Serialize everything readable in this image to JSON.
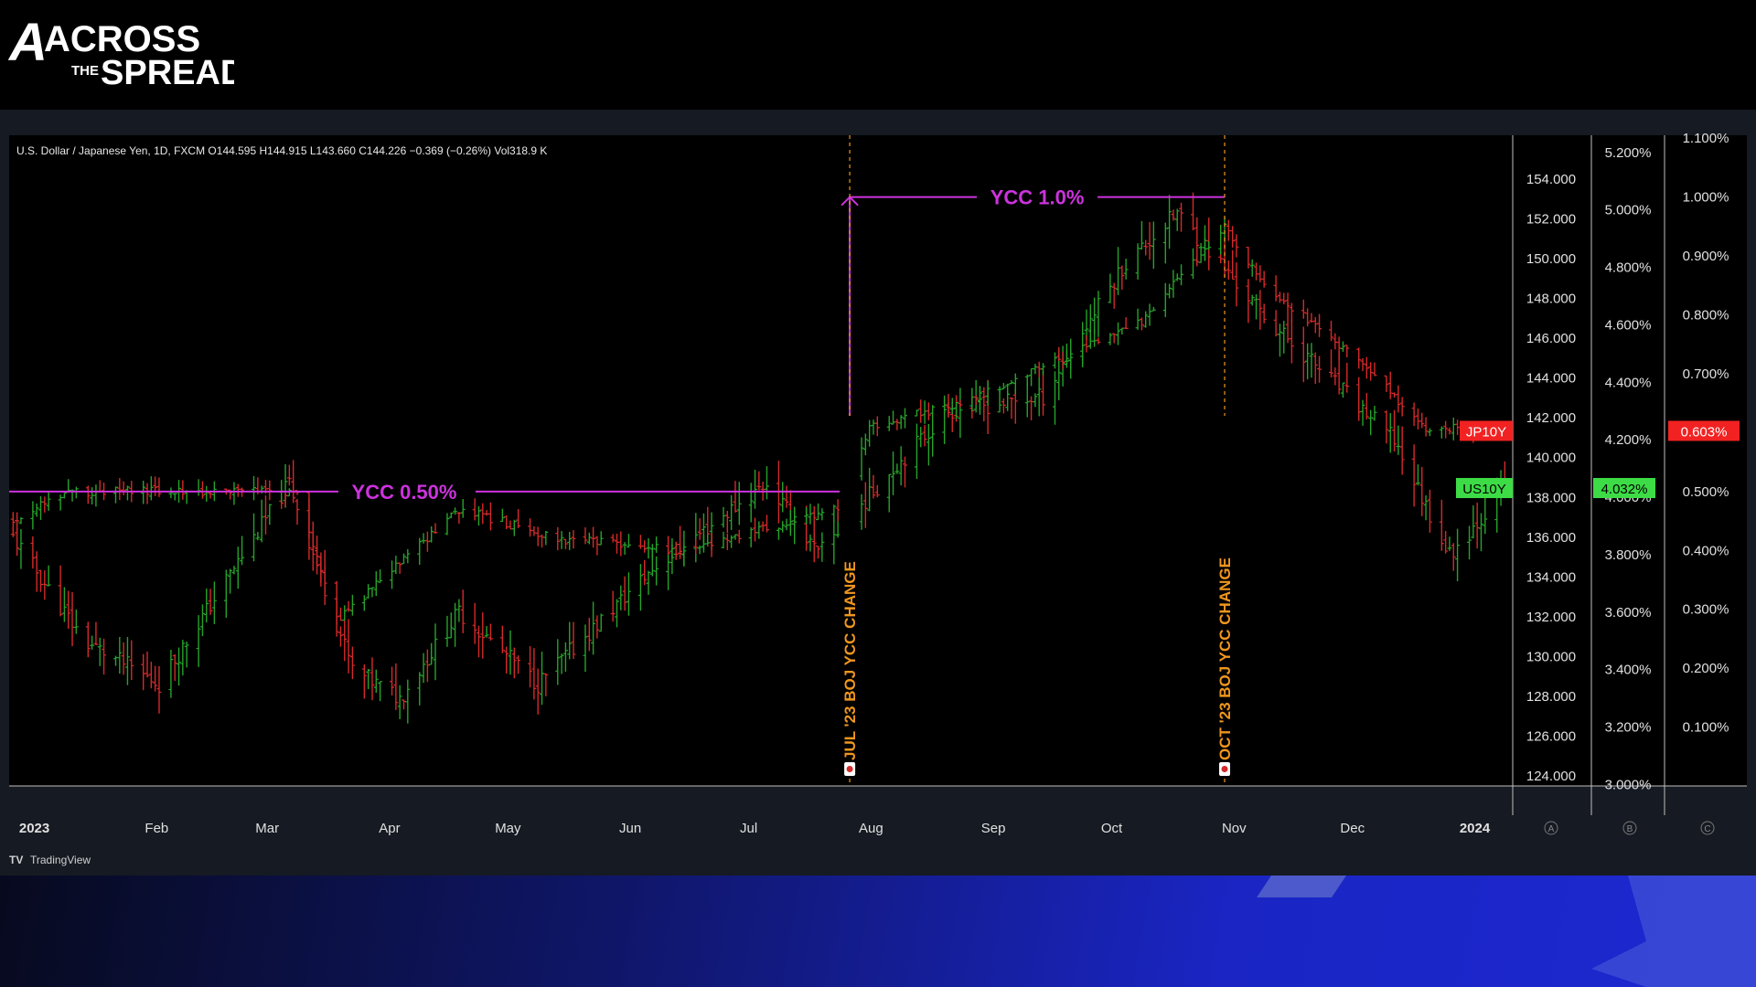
{
  "brand": {
    "logo_line1": "ACROSS",
    "logo_the": "THE",
    "logo_line2": "SPREAD"
  },
  "legend_text": "U.S. Dollar / Japanese Yen, 1D, FXCM  O144.595  H144.915  L143.660  C144.226  −0.369 (−0.26%)  Vol318.9 K",
  "footer": {
    "tradingview_label": "TradingView"
  },
  "pane_letters": [
    "A",
    "B",
    "C"
  ],
  "colors": {
    "up": "#26a32a",
    "down": "#d42a2a",
    "annotation": "#cc33dd",
    "event": "#f0961e",
    "jp_label": "#f22222",
    "us_label": "#3ddc46"
  },
  "chart_data": {
    "type": "bar",
    "symbol": "U.S. Dollar / Japanese Yen",
    "interval": "1D",
    "x_range": [
      "2022-12-27",
      "2024-01-12"
    ],
    "x_ticks": [
      "2023",
      "Feb",
      "Mar",
      "Apr",
      "May",
      "Jun",
      "Jul",
      "Aug",
      "Sep",
      "Oct",
      "Nov",
      "Dec",
      "2024"
    ],
    "y_axes": [
      {
        "name": "USDJPY",
        "range": [
          123.5,
          156.2
        ],
        "ticks": [
          "124.000",
          "126.000",
          "128.000",
          "130.000",
          "132.000",
          "134.000",
          "136.000",
          "138.000",
          "140.000",
          "142.000",
          "144.000",
          "146.000",
          "148.000",
          "150.000",
          "152.000",
          "154.000"
        ]
      },
      {
        "name": "US10Y",
        "range": [
          2.995,
          5.26
        ],
        "ticks": [
          "3.000%",
          "3.200%",
          "3.400%",
          "3.600%",
          "3.800%",
          "4.000%",
          "4.200%",
          "4.400%",
          "4.600%",
          "4.800%",
          "5.000%",
          "5.200%"
        ],
        "last_value": "4.032%",
        "label": "US10Y"
      },
      {
        "name": "JP10Y",
        "range": [
          0.0,
          1.105
        ],
        "ticks": [
          "0.100%",
          "0.200%",
          "0.300%",
          "0.400%",
          "0.500%",
          "0.600%",
          "0.700%",
          "0.800%",
          "0.900%",
          "1.000%",
          "1.100%"
        ],
        "last_value": "0.603%",
        "label": "JP10Y"
      }
    ],
    "series_keypoints": {
      "jp10y_approx": [
        [
          "2022-12-28",
          0.45
        ],
        [
          "2023-01-10",
          0.5
        ],
        [
          "2023-03-10",
          0.5
        ],
        [
          "2023-03-20",
          0.28
        ],
        [
          "2023-04-20",
          0.47
        ],
        [
          "2023-05-15",
          0.42
        ],
        [
          "2023-06-15",
          0.4
        ],
        [
          "2023-07-25",
          0.47
        ],
        [
          "2023-08-02",
          0.61
        ],
        [
          "2023-08-25",
          0.65
        ],
        [
          "2023-09-15",
          0.71
        ],
        [
          "2023-10-10",
          0.79
        ],
        [
          "2023-10-31",
          0.95
        ],
        [
          "2023-11-10",
          0.85
        ],
        [
          "2023-12-05",
          0.72
        ],
        [
          "2023-12-20",
          0.61
        ],
        [
          "2024-01-10",
          0.6
        ]
      ],
      "us10y_approx": [
        [
          "2022-12-28",
          3.86
        ],
        [
          "2023-01-15",
          3.5
        ],
        [
          "2023-02-03",
          3.35
        ],
        [
          "2023-03-08",
          4.05
        ],
        [
          "2023-03-24",
          3.4
        ],
        [
          "2023-04-05",
          3.3
        ],
        [
          "2023-04-20",
          3.6
        ],
        [
          "2023-05-10",
          3.35
        ],
        [
          "2023-06-08",
          3.75
        ],
        [
          "2023-07-07",
          4.05
        ],
        [
          "2023-07-20",
          3.8
        ],
        [
          "2023-08-08",
          4.1
        ],
        [
          "2023-08-22",
          4.3
        ],
        [
          "2023-09-15",
          4.35
        ],
        [
          "2023-10-05",
          4.8
        ],
        [
          "2023-10-19",
          4.99
        ],
        [
          "2023-11-10",
          4.63
        ],
        [
          "2023-12-13",
          4.2
        ],
        [
          "2023-12-27",
          3.8
        ],
        [
          "2024-01-10",
          4.03
        ]
      ]
    },
    "annotations": [
      {
        "text": "YCC 0.50%",
        "type": "level",
        "axis": "JP10Y",
        "value": 0.5,
        "from": "2022-12-27",
        "to": "2023-07-28"
      },
      {
        "text": "YCC 1.0%",
        "type": "range",
        "from": "2023-07-28",
        "to": "2023-10-31",
        "start_level_jp10y": 0.5,
        "end_level_jp10y": 1.0
      },
      {
        "text": "JUL '23  BOJ YCC CHANGE",
        "type": "event",
        "date": "2023-07-28"
      },
      {
        "text": "OCT '23  BOJ YCC CHANGE",
        "type": "event",
        "date": "2023-10-31"
      }
    ]
  }
}
